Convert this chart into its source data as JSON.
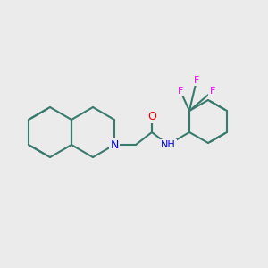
{
  "background_color": "#ebebeb",
  "bond_color": "#3a7a6e",
  "N_color": "#0000ee",
  "O_color": "#ee0000",
  "F_color": "#ee00ee",
  "line_width": 1.5,
  "dbo": 0.012,
  "figsize": [
    3.0,
    3.0
  ],
  "dpi": 100,
  "xlim": [
    0,
    300
  ],
  "ylim": [
    0,
    300
  ]
}
